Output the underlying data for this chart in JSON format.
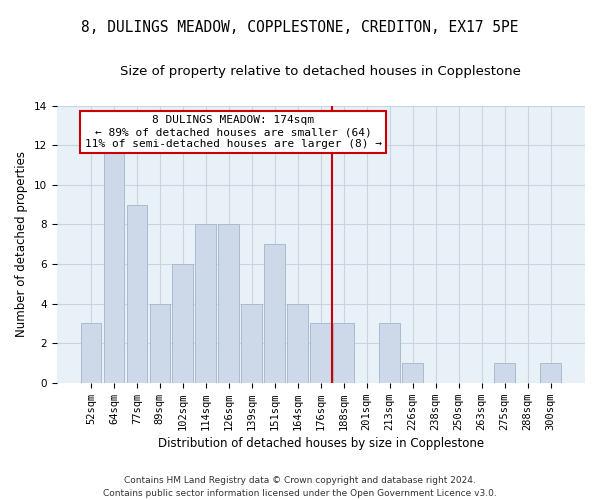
{
  "title1": "8, DULINGS MEADOW, COPPLESTONE, CREDITON, EX17 5PE",
  "title2": "Size of property relative to detached houses in Copplestone",
  "xlabel": "Distribution of detached houses by size in Copplestone",
  "ylabel": "Number of detached properties",
  "categories": [
    "52sqm",
    "64sqm",
    "77sqm",
    "89sqm",
    "102sqm",
    "114sqm",
    "126sqm",
    "139sqm",
    "151sqm",
    "164sqm",
    "176sqm",
    "188sqm",
    "201sqm",
    "213sqm",
    "226sqm",
    "238sqm",
    "250sqm",
    "263sqm",
    "275sqm",
    "288sqm",
    "300sqm"
  ],
  "values": [
    3,
    12,
    9,
    4,
    6,
    8,
    8,
    4,
    7,
    4,
    3,
    3,
    0,
    3,
    1,
    0,
    0,
    0,
    1,
    0,
    1
  ],
  "bar_color": "#cdd9e8",
  "bar_edgecolor": "#aabbd0",
  "vline_color": "#cc0000",
  "annotation_line1": "8 DULINGS MEADOW: 174sqm",
  "annotation_line2": "← 89% of detached houses are smaller (64)",
  "annotation_line3": "11% of semi-detached houses are larger (8) →",
  "annotation_box_color": "#ffffff",
  "annotation_box_edgecolor": "#cc0000",
  "ylim": [
    0,
    14
  ],
  "yticks": [
    0,
    2,
    4,
    6,
    8,
    10,
    12,
    14
  ],
  "grid_color": "#c8d4e0",
  "bg_color": "#e8f0f8",
  "footer_text": "Contains HM Land Registry data © Crown copyright and database right 2024.\nContains public sector information licensed under the Open Government Licence v3.0.",
  "title1_fontsize": 10.5,
  "title2_fontsize": 9.5,
  "xlabel_fontsize": 8.5,
  "ylabel_fontsize": 8.5,
  "tick_fontsize": 7.5,
  "annotation_fontsize": 8,
  "footer_fontsize": 6.5
}
